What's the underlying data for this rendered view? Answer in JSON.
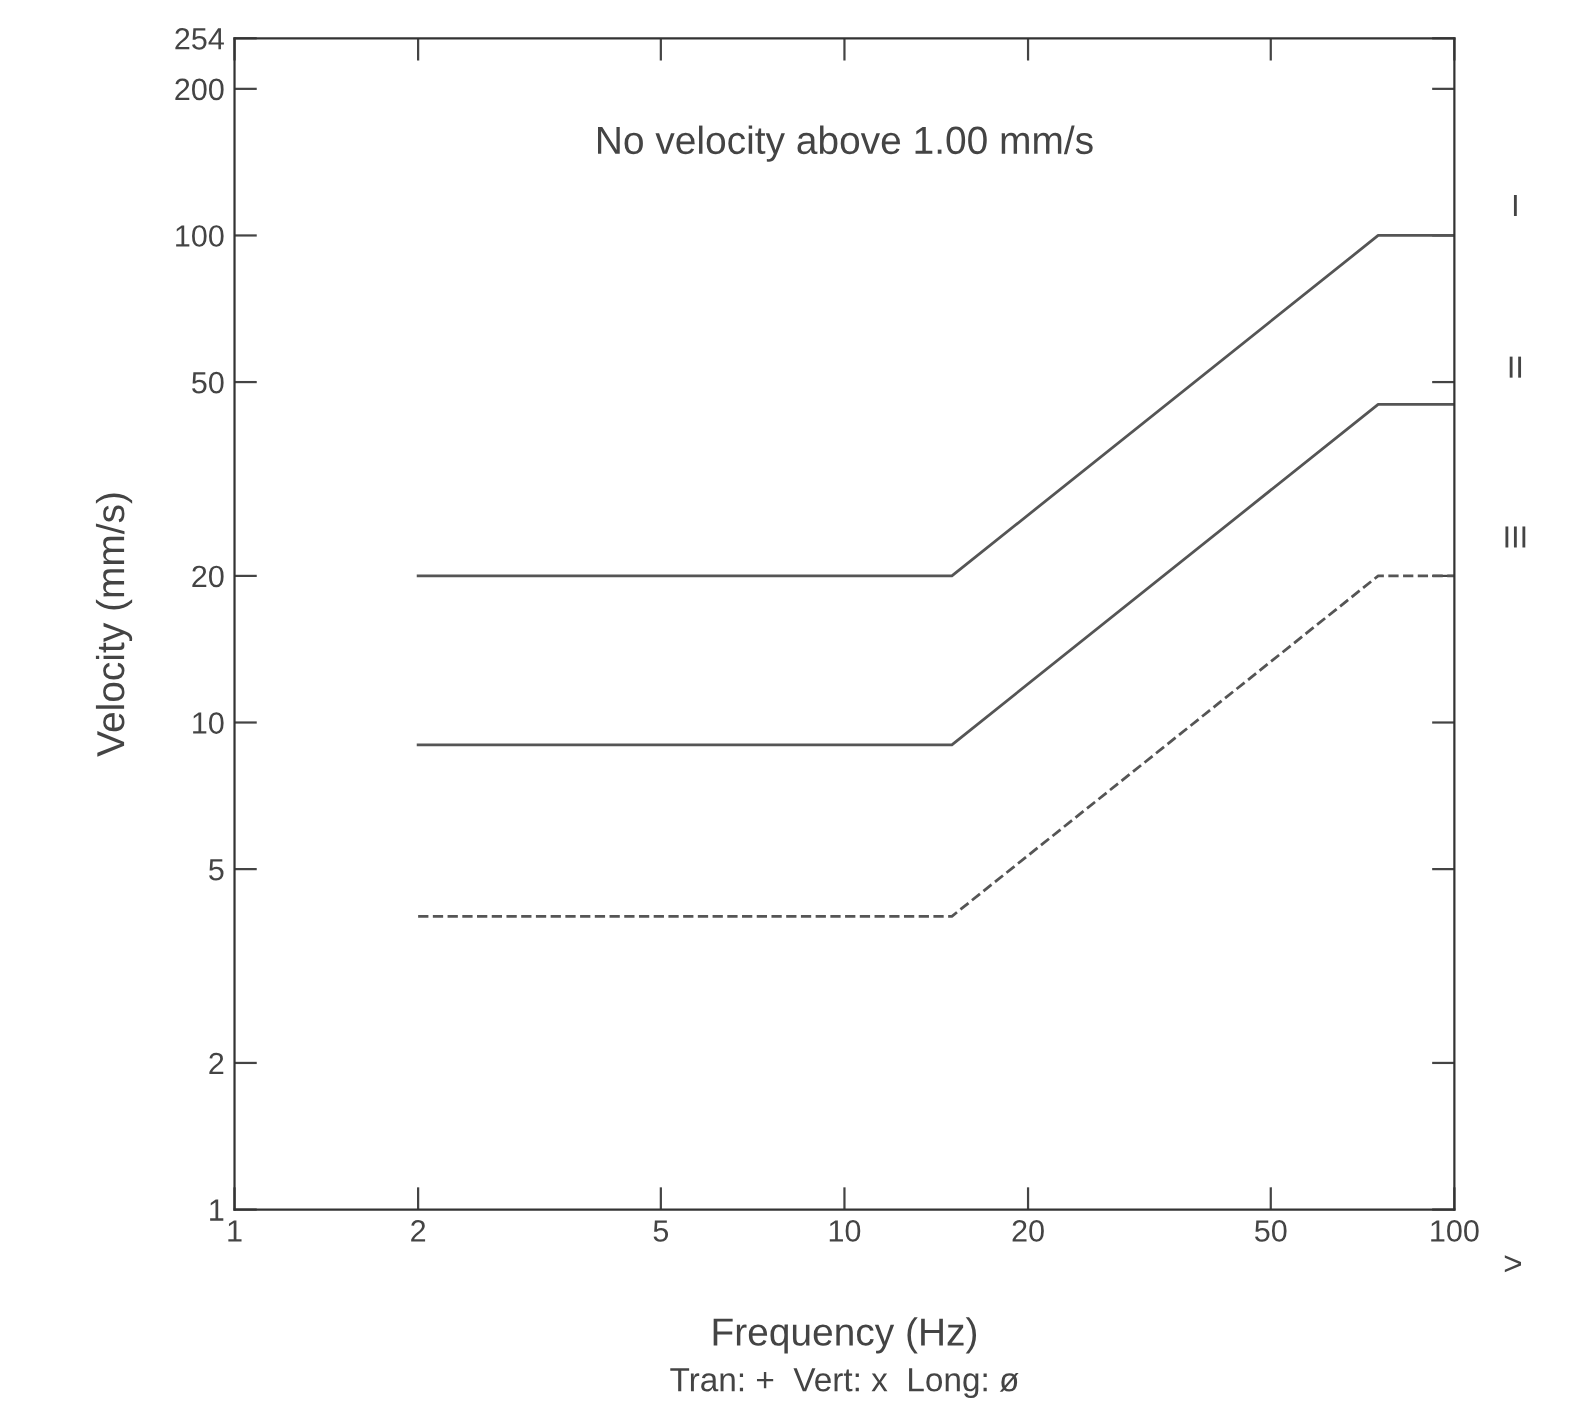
{
  "chart_data": {
    "type": "line",
    "xlabel": "Frequency (Hz)",
    "ylabel": "Velocity (mm/s)",
    "log": "xy",
    "xlim": [
      1,
      100
    ],
    "ylim": [
      1,
      254
    ],
    "xticks": [
      1,
      2,
      5,
      10,
      20,
      50,
      100
    ],
    "yticks": [
      1,
      2,
      5,
      10,
      20,
      50,
      100,
      200,
      254
    ],
    "x": [
      2,
      15,
      75,
      100
    ],
    "series": [
      {
        "color": "#555555",
        "values": [
          20,
          20,
          100,
          100
        ],
        "line_style": "solid"
      },
      {
        "color": "#555555",
        "values": [
          9,
          9,
          45,
          45
        ],
        "line_style": "solid"
      },
      {
        "color": "#555555",
        "values": [
          4,
          4,
          20,
          20
        ],
        "line_style": "dashed"
      }
    ],
    "annotations": [
      "No velocity above 1.00 mm/s",
      "I",
      "II",
      "III",
      ">",
      "Tran: +  Vert: x  Long: ø"
    ],
    "grid": false,
    "marker": "none"
  }
}
